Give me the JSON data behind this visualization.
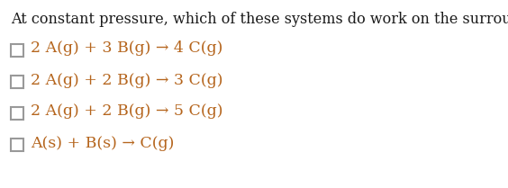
{
  "title": "At constant pressure, which of these systems do work on the surroundings?",
  "title_color": "#1a1a1a",
  "title_fontsize": 11.5,
  "background_color": "#ffffff",
  "checkbox_color": "#999999",
  "checkbox_linewidth": 1.5,
  "text_color": "#b5651d",
  "text_fontsize": 12.5,
  "options": [
    {
      "label": "2 A(g) + 3 B(g) → 4 C(g)"
    },
    {
      "label": "2 A(g) + 2 B(g) → 3 C(g)"
    },
    {
      "label": "2 A(g) + 2 B(g) → 5 C(g)"
    },
    {
      "label": "A(s) + B(s) → C(g)"
    }
  ]
}
